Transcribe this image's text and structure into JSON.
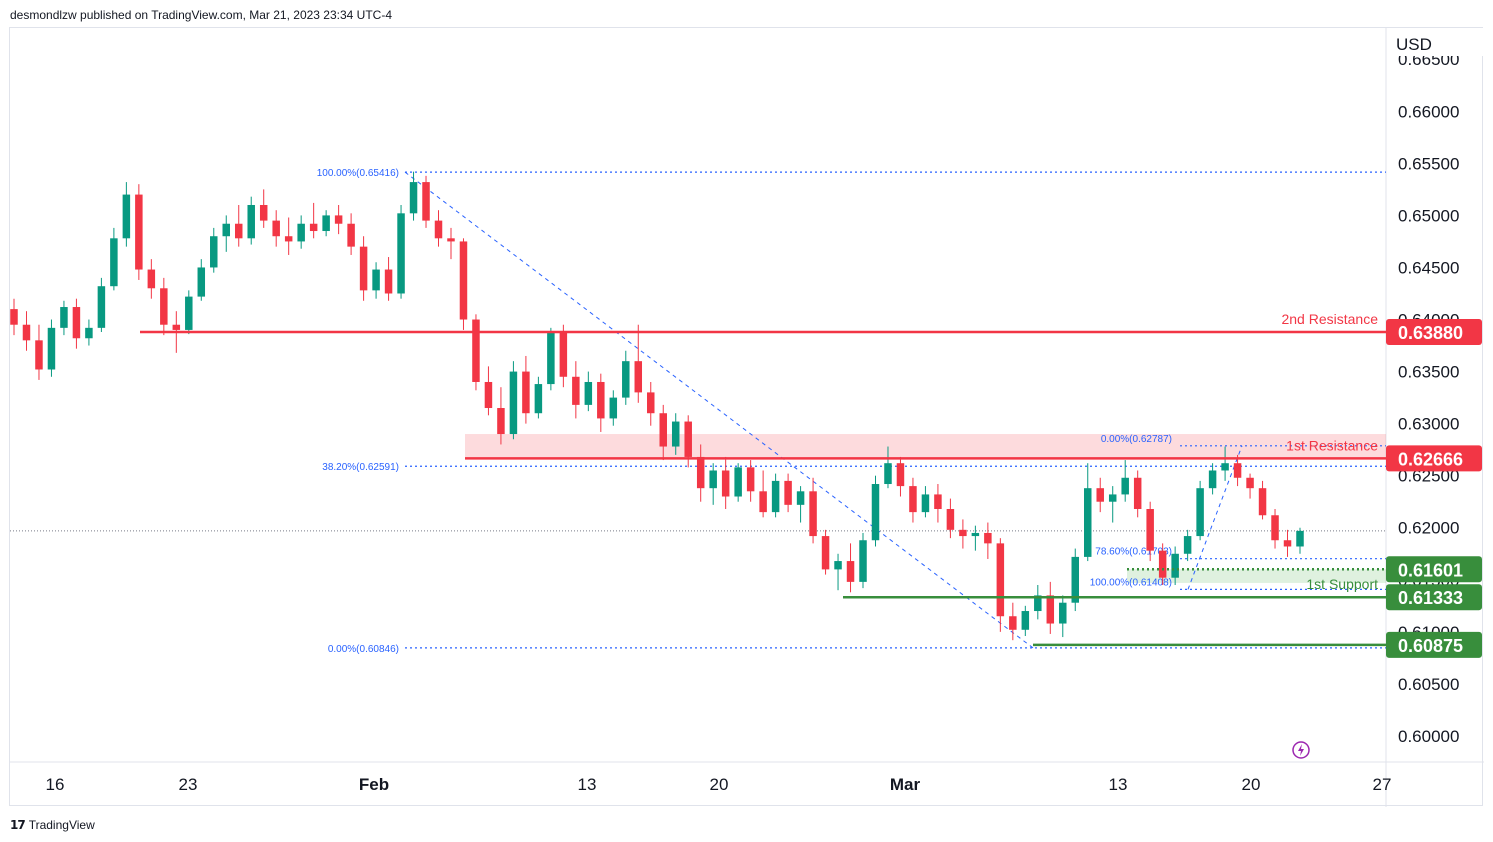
{
  "header": {
    "publisher_line": "desmondlzw published on TradingView.com, Mar 21, 2023 23:34 UTC-4"
  },
  "footer": {
    "brand": "TradingView",
    "logo_glyph": "17"
  },
  "chart_data": {
    "type": "candlestick",
    "currency": "USD",
    "y_range": [
      0.5975,
      0.668
    ],
    "y_ticks": [
      "0.66500",
      "0.66000",
      "0.65500",
      "0.65000",
      "0.64500",
      "0.64000",
      "0.63500",
      "0.63000",
      "0.62500",
      "0.62000",
      "0.61500",
      "0.61000",
      "0.60500",
      "0.60000"
    ],
    "x_ticks": [
      {
        "label": "16",
        "bold": false
      },
      {
        "label": "23",
        "bold": false
      },
      {
        "label": "Feb",
        "bold": true
      },
      {
        "label": "13",
        "bold": false
      },
      {
        "label": "20",
        "bold": false
      },
      {
        "label": "Mar",
        "bold": true
      },
      {
        "label": "13",
        "bold": false
      },
      {
        "label": "20",
        "bold": false
      },
      {
        "label": "27",
        "bold": false
      }
    ],
    "last_price": 0.6197,
    "levels": [
      {
        "name": "2nd Resistance",
        "value": 0.6388,
        "label": "0.63880",
        "color": "#f23645",
        "style": "solid"
      },
      {
        "name": "1st Resistance",
        "value": 0.62666,
        "label": "0.62666",
        "color": "#f23645",
        "style": "solid"
      },
      {
        "name": "",
        "value": 0.61601,
        "label": "0.61601",
        "color": "#388e3c",
        "style": "dotted"
      },
      {
        "name": "1st Support",
        "value": 0.61333,
        "label": "0.61333",
        "color": "#388e3c",
        "style": "solid"
      },
      {
        "name": "",
        "value": 0.60875,
        "label": "0.60875",
        "color": "#388e3c",
        "style": "solid"
      }
    ],
    "resistance_zone": [
      0.62666,
      0.629
    ],
    "support_zone": [
      0.6147,
      0.61601
    ],
    "fib_main": [
      {
        "label": "100.00%(0.65416)",
        "value": 0.65416
      },
      {
        "label": "38.20%(0.62591)",
        "value": 0.62591
      },
      {
        "label": "0.00%(0.60846)",
        "value": 0.60846
      }
    ],
    "fib_recent": [
      {
        "label": "0.00%(0.62787)",
        "value": 0.62787
      },
      {
        "label": "78.60%(0.61703)",
        "value": 0.61703
      },
      {
        "label": "100.00%(0.61408)",
        "value": 0.61408
      }
    ],
    "candles": [
      [
        0.641,
        0.642,
        0.6385,
        0.6395
      ],
      [
        0.6395,
        0.6408,
        0.637,
        0.638
      ],
      [
        0.638,
        0.6395,
        0.6342,
        0.6352
      ],
      [
        0.6352,
        0.64,
        0.6345,
        0.6392
      ],
      [
        0.6392,
        0.6418,
        0.6385,
        0.6412
      ],
      [
        0.6412,
        0.642,
        0.6372,
        0.6382
      ],
      [
        0.6382,
        0.64,
        0.6375,
        0.6392
      ],
      [
        0.6392,
        0.644,
        0.6388,
        0.6432
      ],
      [
        0.6432,
        0.6488,
        0.6428,
        0.6478
      ],
      [
        0.6478,
        0.6532,
        0.647,
        0.652
      ],
      [
        0.652,
        0.653,
        0.6438,
        0.6448
      ],
      [
        0.6448,
        0.6458,
        0.642,
        0.643
      ],
      [
        0.643,
        0.644,
        0.6385,
        0.6395
      ],
      [
        0.6395,
        0.6408,
        0.6368,
        0.639
      ],
      [
        0.639,
        0.6428,
        0.6386,
        0.6422
      ],
      [
        0.6422,
        0.6458,
        0.6418,
        0.645
      ],
      [
        0.645,
        0.6488,
        0.6445,
        0.648
      ],
      [
        0.648,
        0.65,
        0.6465,
        0.6492
      ],
      [
        0.6492,
        0.651,
        0.647,
        0.6478
      ],
      [
        0.6478,
        0.6518,
        0.6472,
        0.651
      ],
      [
        0.651,
        0.6525,
        0.6488,
        0.6495
      ],
      [
        0.6495,
        0.6505,
        0.647,
        0.648
      ],
      [
        0.648,
        0.6498,
        0.6462,
        0.6475
      ],
      [
        0.6475,
        0.65,
        0.6468,
        0.6492
      ],
      [
        0.6492,
        0.6512,
        0.6478,
        0.6485
      ],
      [
        0.6485,
        0.6505,
        0.648,
        0.65
      ],
      [
        0.65,
        0.651,
        0.6482,
        0.6492
      ],
      [
        0.6492,
        0.6502,
        0.6462,
        0.647
      ],
      [
        0.647,
        0.648,
        0.6418,
        0.6428
      ],
      [
        0.6428,
        0.6455,
        0.642,
        0.6448
      ],
      [
        0.6448,
        0.646,
        0.6418,
        0.6425
      ],
      [
        0.6425,
        0.651,
        0.642,
        0.6502
      ],
      [
        0.6502,
        0.6542,
        0.6495,
        0.6532
      ],
      [
        0.6532,
        0.6538,
        0.6488,
        0.6495
      ],
      [
        0.6495,
        0.6505,
        0.647,
        0.6478
      ],
      [
        0.6478,
        0.6488,
        0.6458,
        0.6475
      ],
      [
        0.6475,
        0.6478,
        0.639,
        0.64
      ],
      [
        0.64,
        0.6405,
        0.6332,
        0.634
      ],
      [
        0.634,
        0.6355,
        0.6308,
        0.6315
      ],
      [
        0.6315,
        0.6335,
        0.628,
        0.629
      ],
      [
        0.629,
        0.636,
        0.6285,
        0.635
      ],
      [
        0.635,
        0.6365,
        0.63,
        0.631
      ],
      [
        0.631,
        0.6345,
        0.6305,
        0.6338
      ],
      [
        0.6338,
        0.6392,
        0.6332,
        0.6388
      ],
      [
        0.6388,
        0.6395,
        0.6335,
        0.6345
      ],
      [
        0.6345,
        0.636,
        0.6305,
        0.6318
      ],
      [
        0.6318,
        0.635,
        0.6312,
        0.634
      ],
      [
        0.634,
        0.6348,
        0.6292,
        0.6305
      ],
      [
        0.6305,
        0.6332,
        0.6298,
        0.6325
      ],
      [
        0.6325,
        0.637,
        0.6318,
        0.636
      ],
      [
        0.636,
        0.6395,
        0.632,
        0.633
      ],
      [
        0.633,
        0.634,
        0.6298,
        0.631
      ],
      [
        0.631,
        0.6318,
        0.6265,
        0.6278
      ],
      [
        0.6278,
        0.631,
        0.627,
        0.6302
      ],
      [
        0.6302,
        0.6308,
        0.6258,
        0.6268
      ],
      [
        0.6268,
        0.628,
        0.6225,
        0.6238
      ],
      [
        0.6238,
        0.6262,
        0.6222,
        0.6255
      ],
      [
        0.6255,
        0.6268,
        0.6218,
        0.623
      ],
      [
        0.623,
        0.6262,
        0.6225,
        0.6258
      ],
      [
        0.6258,
        0.6265,
        0.6225,
        0.6235
      ],
      [
        0.6235,
        0.6255,
        0.621,
        0.6215
      ],
      [
        0.6215,
        0.6252,
        0.621,
        0.6245
      ],
      [
        0.6245,
        0.6252,
        0.6215,
        0.6222
      ],
      [
        0.6222,
        0.624,
        0.6205,
        0.6235
      ],
      [
        0.6235,
        0.6248,
        0.6185,
        0.6192
      ],
      [
        0.6192,
        0.6198,
        0.6155,
        0.616
      ],
      [
        0.616,
        0.6175,
        0.614,
        0.6168
      ],
      [
        0.6168,
        0.6185,
        0.6138,
        0.6148
      ],
      [
        0.6148,
        0.6195,
        0.6142,
        0.6188
      ],
      [
        0.6188,
        0.625,
        0.6182,
        0.6242
      ],
      [
        0.6242,
        0.6278,
        0.6238,
        0.6262
      ],
      [
        0.6262,
        0.6268,
        0.623,
        0.624
      ],
      [
        0.624,
        0.6248,
        0.6205,
        0.6215
      ],
      [
        0.6215,
        0.624,
        0.621,
        0.6232
      ],
      [
        0.6232,
        0.6242,
        0.6205,
        0.6218
      ],
      [
        0.6218,
        0.6228,
        0.619,
        0.6198
      ],
      [
        0.6198,
        0.6208,
        0.618,
        0.6192
      ],
      [
        0.6192,
        0.6202,
        0.6178,
        0.6195
      ],
      [
        0.6195,
        0.6205,
        0.617,
        0.6185
      ],
      [
        0.6185,
        0.619,
        0.61,
        0.6115
      ],
      [
        0.6115,
        0.6128,
        0.6092,
        0.6102
      ],
      [
        0.6102,
        0.6125,
        0.6096,
        0.612
      ],
      [
        0.612,
        0.6145,
        0.6112,
        0.6135
      ],
      [
        0.6135,
        0.6148,
        0.6098,
        0.6108
      ],
      [
        0.6108,
        0.6135,
        0.6095,
        0.6128
      ],
      [
        0.6128,
        0.618,
        0.612,
        0.6172
      ],
      [
        0.6172,
        0.6262,
        0.6168,
        0.6238
      ],
      [
        0.6238,
        0.6248,
        0.6215,
        0.6225
      ],
      [
        0.6225,
        0.624,
        0.6205,
        0.6232
      ],
      [
        0.6232,
        0.6265,
        0.6225,
        0.6248
      ],
      [
        0.6248,
        0.6255,
        0.621,
        0.6218
      ],
      [
        0.6218,
        0.6225,
        0.6168,
        0.6178
      ],
      [
        0.6178,
        0.6185,
        0.6145,
        0.6152
      ],
      [
        0.6152,
        0.6182,
        0.6145,
        0.6175
      ],
      [
        0.6175,
        0.6198,
        0.6168,
        0.6192
      ],
      [
        0.6192,
        0.6245,
        0.6188,
        0.6238
      ],
      [
        0.6238,
        0.6262,
        0.6232,
        0.6255
      ],
      [
        0.6255,
        0.6278,
        0.6245,
        0.6262
      ],
      [
        0.6262,
        0.627,
        0.624,
        0.6248
      ],
      [
        0.6248,
        0.6252,
        0.6228,
        0.6238
      ],
      [
        0.6238,
        0.6245,
        0.6208,
        0.6212
      ],
      [
        0.6212,
        0.6218,
        0.618,
        0.6188
      ],
      [
        0.6188,
        0.6198,
        0.6172,
        0.6182
      ],
      [
        0.6182,
        0.62,
        0.6175,
        0.6197
      ]
    ]
  }
}
